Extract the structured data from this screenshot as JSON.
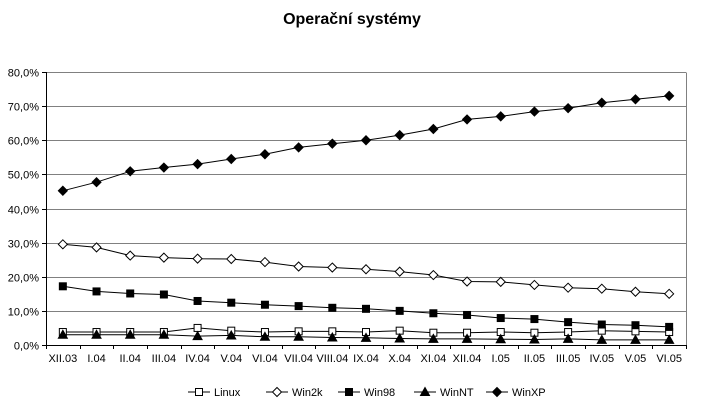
{
  "chart_data": {
    "type": "line",
    "title": "Operační systémy",
    "categories": [
      "XII.03",
      "I.04",
      "II.04",
      "III.04",
      "IV.04",
      "V.04",
      "VI.04",
      "VII.04",
      "VIII.04",
      "IX.04",
      "X.04",
      "XI.04",
      "XII.04",
      "I.05",
      "II.05",
      "III.05",
      "IV.05",
      "V.05",
      "VI.05"
    ],
    "ylim": [
      0,
      80
    ],
    "ytick_labels": [
      "0,0%",
      "10,0%",
      "20,0%",
      "30,0%",
      "40,0%",
      "50,0%",
      "60,0%",
      "70,0%",
      "80,0%"
    ],
    "grid": true,
    "legend_position": "bottom",
    "series": [
      {
        "name": "Linux",
        "marker": "square-open",
        "values": [
          3.8,
          3.8,
          3.8,
          3.8,
          5.0,
          4.2,
          3.8,
          4.0,
          4.0,
          3.8,
          4.2,
          3.6,
          3.6,
          3.8,
          3.6,
          3.8,
          4.2,
          4.0,
          3.8
        ]
      },
      {
        "name": "Win2k",
        "marker": "diamond-open",
        "values": [
          29.5,
          28.6,
          26.2,
          25.6,
          25.3,
          25.2,
          24.3,
          23.0,
          22.7,
          22.2,
          21.5,
          20.5,
          18.6,
          18.5,
          17.6,
          16.8,
          16.5,
          15.6,
          15.0
        ]
      },
      {
        "name": "Win98",
        "marker": "square-filled",
        "values": [
          17.2,
          15.7,
          15.1,
          14.8,
          12.9,
          12.4,
          11.8,
          11.4,
          10.9,
          10.6,
          10.0,
          9.3,
          8.8,
          7.9,
          7.6,
          6.7,
          6.0,
          5.8,
          5.3
        ]
      },
      {
        "name": "WinNT",
        "marker": "triangle-filled",
        "values": [
          3.0,
          3.0,
          3.0,
          3.0,
          2.6,
          2.8,
          2.4,
          2.4,
          2.2,
          2.1,
          1.9,
          1.8,
          1.8,
          1.7,
          1.6,
          1.8,
          1.5,
          1.5,
          1.5
        ]
      },
      {
        "name": "WinXP",
        "marker": "diamond-filled",
        "values": [
          45.2,
          47.7,
          50.9,
          52.0,
          53.0,
          54.5,
          55.9,
          57.9,
          59.0,
          60.0,
          61.5,
          63.3,
          66.1,
          67.0,
          68.4,
          69.4,
          71.0,
          72.0,
          73.0
        ]
      }
    ]
  }
}
